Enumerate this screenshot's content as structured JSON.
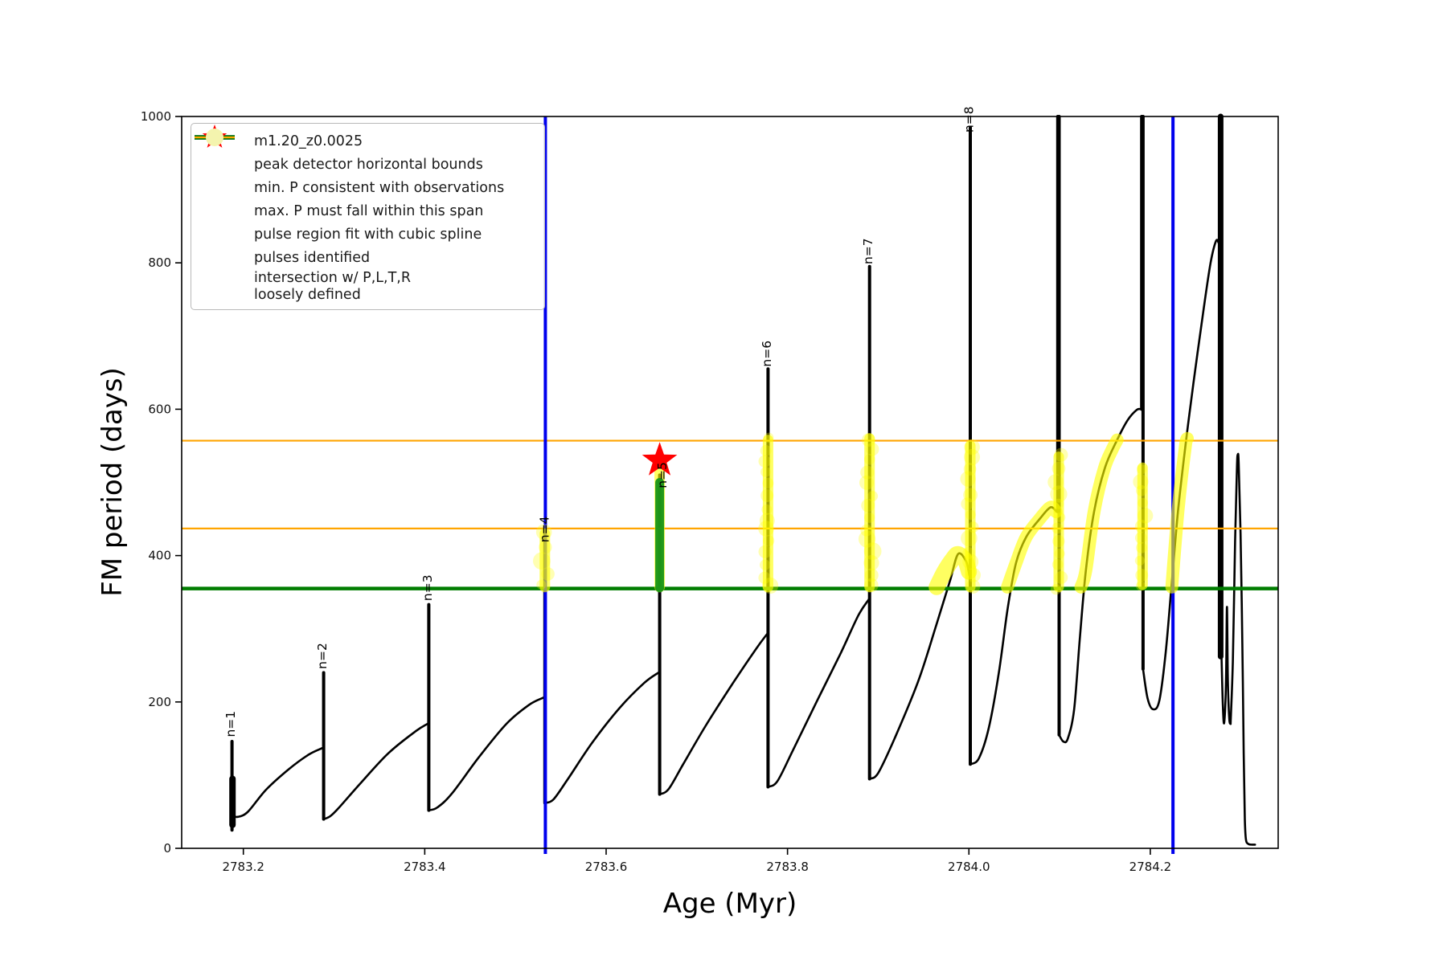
{
  "figure": {
    "background": "#ffffff"
  },
  "axes": {
    "xlabel": "Age (Myr)",
    "ylabel": "FM period (days)",
    "xlim": [
      2783.132,
      2784.341
    ],
    "ylim": [
      0,
      1000
    ],
    "xticks": [
      {
        "label": "2783.2",
        "value": 2783.2
      },
      {
        "label": "2783.4",
        "value": 2783.4
      },
      {
        "label": "2783.6",
        "value": 2783.6
      },
      {
        "label": "2783.8",
        "value": 2783.8
      },
      {
        "label": "2784.0",
        "value": 2784.0
      },
      {
        "label": "2784.2",
        "value": 2784.2
      }
    ],
    "yticks": [
      {
        "label": "0",
        "value": 0
      },
      {
        "label": "200",
        "value": 200
      },
      {
        "label": "400",
        "value": 400
      },
      {
        "label": "600",
        "value": 600
      },
      {
        "label": "800",
        "value": 800
      },
      {
        "label": "1000",
        "value": 1000
      }
    ]
  },
  "colors": {
    "curve": "#000000",
    "peak_bounds_blue": "#0000ee",
    "min_p_green": "#007d00",
    "max_p_orange": "#ffa500",
    "pulse_fit_green": "#179317",
    "pulse_fit_legend_green": "#90ee90",
    "star_red": "#ff0000",
    "intersection_yellow": "#ffff00",
    "intersection_legend_yellow": "#f4f4ae"
  },
  "legend": {
    "entries": [
      {
        "label": "m1.20_z0.0025",
        "marker": "line-dot",
        "color": "#000000"
      },
      {
        "label": "peak detector horizontal bounds",
        "marker": "thick-line",
        "color": "#0000ee"
      },
      {
        "label": "min. P consistent with observations",
        "marker": "thick-line",
        "color": "#007d00"
      },
      {
        "label": "max. P must fall within this span",
        "marker": "line",
        "color": "#ffa500"
      },
      {
        "label": "pulse region fit with cubic spline",
        "marker": "dot-small",
        "color": "#90ee90"
      },
      {
        "label": "pulses identified",
        "marker": "star",
        "color": "#ff0000"
      },
      {
        "label": "intersection w/ P,L,T,R\nloosely defined",
        "marker": "dot-large",
        "color": "#f4f4ae"
      }
    ]
  },
  "chart_data": {
    "type": "line",
    "series_name": "m1.20_z0.0025",
    "xlabel": "Age (Myr)",
    "ylabel": "FM period (days)",
    "xlim": [
      2783.132,
      2784.341
    ],
    "ylim": [
      0,
      1000
    ],
    "grid": false,
    "legend_position": "upper-left",
    "vlines": {
      "color": "#0000ee",
      "x": [
        2783.533,
        2784.225
      ],
      "label": "peak detector horizontal bounds"
    },
    "hlines": [
      {
        "y": 557,
        "color": "#ffa500",
        "w": 2.2,
        "label": "max. P must fall within this span"
      },
      {
        "y": 437,
        "color": "#ffa500",
        "w": 2.2,
        "label": "max. P must fall within this span"
      },
      {
        "y": 355,
        "color": "#007d00",
        "w": 4.5,
        "label": "min. P consistent with observations"
      }
    ],
    "curve_segments": [
      {
        "w": 4,
        "pts": [
          [
            2783.1875,
            25
          ],
          [
            2783.1875,
            146
          ]
        ]
      },
      {
        "w": 8,
        "pts": [
          [
            2783.188,
            32
          ],
          [
            2783.188,
            95
          ]
        ]
      },
      {
        "smooth": true,
        "pts": [
          [
            2783.1885,
            60
          ],
          [
            2783.1895,
            46
          ],
          [
            2783.194,
            43
          ],
          [
            2783.205,
            50
          ],
          [
            2783.225,
            80
          ],
          [
            2783.25,
            108
          ],
          [
            2783.272,
            128
          ],
          [
            2783.287,
            137
          ]
        ]
      },
      {
        "w": 4,
        "pts": [
          [
            2783.2885,
            137
          ],
          [
            2783.2885,
            240
          ],
          [
            2783.2885,
            40
          ]
        ]
      },
      {
        "smooth": true,
        "pts": [
          [
            2783.289,
            40
          ],
          [
            2783.296,
            44
          ],
          [
            2783.305,
            55
          ],
          [
            2783.33,
            90
          ],
          [
            2783.36,
            130
          ],
          [
            2783.39,
            160
          ],
          [
            2783.403,
            170
          ]
        ]
      },
      {
        "w": 4,
        "pts": [
          [
            2783.4045,
            170
          ],
          [
            2783.4045,
            333
          ],
          [
            2783.4045,
            52
          ]
        ]
      },
      {
        "smooth": true,
        "pts": [
          [
            2783.405,
            52
          ],
          [
            2783.414,
            56
          ],
          [
            2783.43,
            75
          ],
          [
            2783.46,
            125
          ],
          [
            2783.49,
            170
          ],
          [
            2783.515,
            196
          ],
          [
            2783.531,
            206
          ]
        ]
      },
      {
        "w": 4,
        "pts": [
          [
            2783.5325,
            206
          ],
          [
            2783.5325,
            430
          ],
          [
            2783.5325,
            62
          ]
        ]
      },
      {
        "smooth": true,
        "pts": [
          [
            2783.533,
            62
          ],
          [
            2783.542,
            67
          ],
          [
            2783.558,
            95
          ],
          [
            2783.585,
            145
          ],
          [
            2783.615,
            192
          ],
          [
            2783.642,
            226
          ],
          [
            2783.6575,
            240
          ]
        ]
      },
      {
        "w": 4,
        "pts": [
          [
            2783.659,
            240
          ],
          [
            2783.659,
            510
          ],
          [
            2783.659,
            74
          ]
        ]
      },
      {
        "smooth": true,
        "pts": [
          [
            2783.6595,
            74
          ],
          [
            2783.669,
            81
          ],
          [
            2783.685,
            115
          ],
          [
            2783.71,
            168
          ],
          [
            2783.74,
            226
          ],
          [
            2783.765,
            272
          ],
          [
            2783.7775,
            293
          ]
        ]
      },
      {
        "w": 4,
        "pts": [
          [
            2783.7785,
            293
          ],
          [
            2783.7785,
            655
          ],
          [
            2783.7785,
            84
          ]
        ]
      },
      {
        "smooth": true,
        "pts": [
          [
            2783.779,
            84
          ],
          [
            2783.789,
            92
          ],
          [
            2783.806,
            134
          ],
          [
            2783.832,
            200
          ],
          [
            2783.858,
            265
          ],
          [
            2783.878,
            318
          ],
          [
            2783.8895,
            340
          ]
        ]
      },
      {
        "w": 4,
        "pts": [
          [
            2783.8905,
            340
          ],
          [
            2783.8905,
            795
          ],
          [
            2783.8905,
            95
          ]
        ]
      },
      {
        "smooth": true,
        "pts": [
          [
            2783.891,
            95
          ],
          [
            2783.9,
            103
          ],
          [
            2783.918,
            150
          ],
          [
            2783.944,
            228
          ],
          [
            2783.964,
            305
          ],
          [
            2783.979,
            365
          ],
          [
            2783.988,
            402
          ],
          [
            2783.997,
            392
          ],
          [
            2784.0005,
            373
          ]
        ]
      },
      {
        "w": 4,
        "pts": [
          [
            2784.0015,
            373
          ],
          [
            2784.0015,
            985
          ],
          [
            2784.0015,
            115
          ]
        ]
      },
      {
        "smooth": true,
        "pts": [
          [
            2784.002,
            115
          ],
          [
            2784.011,
            123
          ],
          [
            2784.022,
            165
          ],
          [
            2784.033,
            240
          ],
          [
            2784.043,
            330
          ],
          [
            2784.052,
            390
          ],
          [
            2784.063,
            425
          ],
          [
            2784.078,
            450
          ],
          [
            2784.09,
            466
          ],
          [
            2784.0965,
            460
          ]
        ]
      },
      {
        "w": 4,
        "pts": [
          [
            2784.098,
            460
          ],
          [
            2784.098,
            1000
          ]
        ]
      },
      {
        "w": 4,
        "pts": [
          [
            2784.0995,
            1000
          ],
          [
            2784.0995,
            155
          ]
        ]
      },
      {
        "smooth": true,
        "pts": [
          [
            2784.0995,
            155
          ],
          [
            2784.104,
            146
          ],
          [
            2784.109,
            150
          ],
          [
            2784.116,
            190
          ],
          [
            2784.1225,
            290
          ],
          [
            2784.129,
            380
          ],
          [
            2784.138,
            460
          ],
          [
            2784.15,
            520
          ],
          [
            2784.163,
            557
          ],
          [
            2784.175,
            585
          ],
          [
            2784.185,
            599
          ],
          [
            2784.19,
            600
          ]
        ]
      },
      {
        "w": 4,
        "pts": [
          [
            2784.1905,
            600
          ],
          [
            2784.1905,
            1000
          ]
        ]
      },
      {
        "w": 4,
        "pts": [
          [
            2784.192,
            1000
          ],
          [
            2784.192,
            245
          ]
        ]
      },
      {
        "smooth": true,
        "pts": [
          [
            2784.192,
            245
          ],
          [
            2784.197,
            205
          ],
          [
            2784.203,
            190
          ],
          [
            2784.21,
            202
          ],
          [
            2784.217,
            268
          ],
          [
            2784.2235,
            360
          ],
          [
            2784.2305,
            460
          ],
          [
            2784.2385,
            548
          ],
          [
            2784.2475,
            635
          ],
          [
            2784.258,
            730
          ],
          [
            2784.2665,
            800
          ],
          [
            2784.2725,
            830
          ],
          [
            2784.2755,
            827
          ]
        ]
      },
      {
        "w": 3,
        "pts": [
          [
            2784.276,
            827
          ],
          [
            2784.276,
            1000
          ]
        ]
      },
      {
        "w": 7,
        "pts": [
          [
            2784.2775,
            1000
          ],
          [
            2784.2775,
            262
          ]
        ]
      },
      {
        "smooth": true,
        "pts": [
          [
            2784.2785,
            262
          ],
          [
            2784.28,
            195
          ],
          [
            2784.2815,
            172
          ],
          [
            2784.2835,
            230
          ],
          [
            2784.2845,
            330
          ],
          [
            2784.2855,
            230
          ],
          [
            2784.287,
            178
          ],
          [
            2784.2885,
            170
          ]
        ]
      },
      {
        "smooth": true,
        "pts": [
          [
            2784.2885,
            170
          ],
          [
            2784.291,
            255
          ],
          [
            2784.2935,
            420
          ],
          [
            2784.2955,
            520
          ],
          [
            2784.2965,
            538
          ],
          [
            2784.2975,
            525
          ],
          [
            2784.2995,
            430
          ],
          [
            2784.3015,
            280
          ],
          [
            2784.303,
            130
          ],
          [
            2784.3042,
            40
          ],
          [
            2784.3055,
            12
          ],
          [
            2784.308,
            6
          ],
          [
            2784.312,
            5
          ],
          [
            2784.3155,
            5
          ]
        ]
      }
    ],
    "yellow_segments": [
      {
        "pts": [
          [
            2783.5325,
            357
          ],
          [
            2783.5325,
            430
          ]
        ],
        "bubbles": true
      },
      {
        "pts": [
          [
            2783.659,
            357
          ],
          [
            2783.659,
            514
          ]
        ]
      },
      {
        "pts": [
          [
            2783.7785,
            357
          ],
          [
            2783.7785,
            558
          ]
        ],
        "bubbles": true
      },
      {
        "pts": [
          [
            2783.8905,
            357
          ],
          [
            2783.8905,
            560
          ]
        ],
        "bubbles": true
      },
      {
        "smooth": true,
        "w": 20,
        "pts": [
          [
            2783.9645,
            357
          ],
          [
            2783.973,
            378
          ],
          [
            2783.982,
            395
          ],
          [
            2783.988,
            402
          ],
          [
            2783.996,
            393
          ],
          [
            2784.0,
            378
          ]
        ]
      },
      {
        "pts": [
          [
            2784.0015,
            357
          ],
          [
            2784.0015,
            550
          ]
        ],
        "bubbles": true
      },
      {
        "smooth": true,
        "w": 16,
        "pts": [
          [
            2784.0425,
            357
          ],
          [
            2784.052,
            390
          ],
          [
            2784.063,
            425
          ],
          [
            2784.078,
            450
          ],
          [
            2784.09,
            466
          ],
          [
            2784.096,
            460
          ]
        ]
      },
      {
        "pts": [
          [
            2784.099,
            357
          ],
          [
            2784.099,
            535
          ]
        ],
        "bubbles": true
      },
      {
        "smooth": true,
        "w": 16,
        "pts": [
          [
            2784.1235,
            357
          ],
          [
            2784.129,
            380
          ],
          [
            2784.138,
            460
          ],
          [
            2784.149,
            518
          ],
          [
            2784.158,
            545
          ],
          [
            2784.1635,
            558
          ]
        ]
      },
      {
        "pts": [
          [
            2784.1915,
            360
          ],
          [
            2784.1915,
            520
          ]
        ],
        "bubbles": true
      },
      {
        "smooth": true,
        "w": 16,
        "pts": [
          [
            2784.2237,
            357
          ],
          [
            2784.2305,
            460
          ],
          [
            2784.2385,
            548
          ],
          [
            2784.2408,
            560
          ]
        ]
      }
    ],
    "green_segment": {
      "pts": [
        [
          2783.659,
          356
        ],
        [
          2783.659,
          500
        ]
      ],
      "w": 11
    },
    "pulse_star": {
      "x": 2783.659,
      "y": 530
    },
    "annotations": [
      {
        "label": "n=1",
        "x": 2783.1905,
        "y": 152
      },
      {
        "label": "n=2",
        "x": 2783.2915,
        "y": 245
      },
      {
        "label": "n=3",
        "x": 2783.4075,
        "y": 338
      },
      {
        "label": "n=4",
        "x": 2783.5365,
        "y": 418
      },
      {
        "label": "n=5",
        "x": 2783.6665,
        "y": 492
      },
      {
        "label": "n=6",
        "x": 2783.7815,
        "y": 658
      },
      {
        "label": "n=7",
        "x": 2783.8935,
        "y": 798
      },
      {
        "label": "n=8",
        "x": 2784.0045,
        "y": 978
      }
    ]
  }
}
